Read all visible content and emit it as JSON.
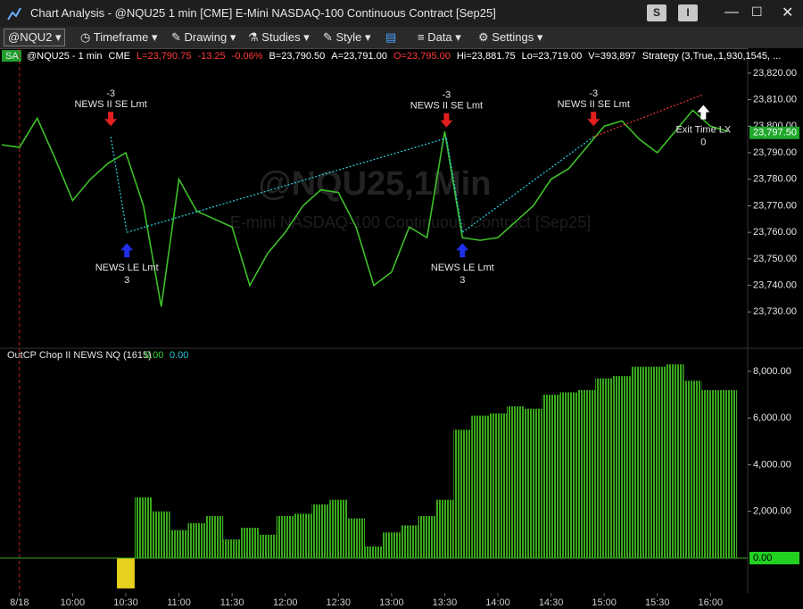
{
  "window": {
    "title": "Chart Analysis - @NQU25 1 min [CME] E-Mini NASDAQ-100 Continuous Contract [Sep25]",
    "buttons": [
      "S",
      "I"
    ]
  },
  "toolbar": {
    "symbol": "@NQU2",
    "items": [
      "Timeframe",
      "Drawing",
      "Studies",
      "Style",
      "Data",
      "Settings"
    ]
  },
  "price_pane": {
    "badge": "SA",
    "header": [
      {
        "text": "@NQU25 - 1 min",
        "color": "#ffffff"
      },
      {
        "text": "CME",
        "color": "#ffffff"
      },
      {
        "text": "L=23,790.75",
        "color": "#ff3b3b"
      },
      {
        "text": "-13.25",
        "color": "#ff3b3b"
      },
      {
        "text": "-0.06%",
        "color": "#ff3b3b"
      },
      {
        "text": "B=23,790.50",
        "color": "#ffffff"
      },
      {
        "text": "A=23,791.00",
        "color": "#ffffff"
      },
      {
        "text": "O=23,795.00",
        "color": "#ff3b3b"
      },
      {
        "text": "Hi=23,881.75",
        "color": "#ffffff"
      },
      {
        "text": "Lo=23,719.00",
        "color": "#ffffff"
      },
      {
        "text": "V=393,897",
        "color": "#ffffff"
      },
      {
        "text": "Strategy (3,True,.1,930,1545, ...",
        "color": "#ffffff"
      }
    ],
    "watermark": [
      "@NQU25,1Min",
      "E-mini NASDAQ-100 Continuous Contract [Sep25]"
    ],
    "type": "line",
    "color": "#3fbf2a",
    "x": [
      560,
      570,
      580,
      590,
      600,
      610,
      620,
      630,
      640,
      650,
      660,
      670,
      680,
      690,
      700,
      710,
      720,
      730,
      740,
      750,
      760,
      770,
      780,
      790,
      800,
      810,
      820,
      830,
      840,
      850,
      860,
      870,
      880,
      890,
      900,
      910,
      920,
      930,
      940,
      950,
      960,
      970
    ],
    "values": [
      23793,
      23792,
      23803,
      23788,
      23772,
      23780,
      23786,
      23790,
      23770,
      23732,
      23780,
      23768,
      23765,
      23762,
      23740,
      23752,
      23760,
      23770,
      23776,
      23775,
      23762,
      23740,
      23745,
      23762,
      23758,
      23798,
      23758,
      23757,
      23758,
      23764,
      23770,
      23780,
      23784,
      23792,
      23800,
      23802,
      23795,
      23790,
      23798,
      23806,
      23800,
      23798
    ],
    "ylim": [
      23718,
      23824
    ],
    "yticks": [
      {
        "value": 23730,
        "label": "23,730.00"
      },
      {
        "value": 23740,
        "label": "23,740.00"
      },
      {
        "value": 23750,
        "label": "23,750.00"
      },
      {
        "value": 23760,
        "label": "23,760.00"
      },
      {
        "value": 23770,
        "label": "23,770.00"
      },
      {
        "value": 23780,
        "label": "23,780.00"
      },
      {
        "value": 23790,
        "label": "23,790.00"
      },
      {
        "value": 23800,
        "label": "23,800.00"
      },
      {
        "value": 23810,
        "label": "23,810.00"
      },
      {
        "value": 23820,
        "label": "23,820.00"
      }
    ],
    "last_price": {
      "value": 23797.5,
      "label": "23,797.50"
    },
    "signals": [
      {
        "time": 621.5,
        "price": 23796,
        "side": "sell",
        "qty": -3,
        "name": "NEWS II SE Lmt",
        "line_to_next": "#29c6d6"
      },
      {
        "time": 630.6,
        "price": 23760,
        "side": "buy",
        "qty": 3,
        "name": "NEWS LE Lmt",
        "line_to_next": "#29c6d6"
      },
      {
        "time": 811,
        "price": 23795.5,
        "side": "sell",
        "qty": -3,
        "name": "NEWS II SE Lmt",
        "line_to_next": "#29c6d6"
      },
      {
        "time": 820,
        "price": 23760,
        "side": "buy",
        "qty": 3,
        "name": "NEWS LE Lmt",
        "line_to_next": "#29c6d6"
      },
      {
        "time": 894,
        "price": 23796,
        "side": "sell",
        "qty": -3,
        "name": "NEWS II SE Lmt",
        "line_to_next": "#e03030"
      },
      {
        "time": 956,
        "price": 23812,
        "side": "exit",
        "qty": 0,
        "name": "Exit Time LX"
      }
    ]
  },
  "indicator_pane": {
    "title": "OutCP Chop II NEWS NQ (1615)",
    "readouts": [
      "0.00",
      "0.00"
    ],
    "type": "bar",
    "color": "#3aa81c",
    "negative_color": "#e6d21e",
    "x": [
      560,
      570,
      580,
      590,
      600,
      610,
      620,
      630,
      640,
      650,
      660,
      670,
      680,
      690,
      700,
      710,
      720,
      730,
      740,
      750,
      760,
      770,
      780,
      790,
      800,
      810,
      820,
      830,
      840,
      850,
      860,
      870,
      880,
      890,
      900,
      910,
      920,
      930,
      940,
      950,
      960,
      970
    ],
    "values": [
      0,
      0,
      0,
      0,
      0,
      0,
      0,
      -1300,
      2600,
      2000,
      1200,
      1500,
      1800,
      800,
      1300,
      1000,
      1800,
      1900,
      2300,
      2500,
      1700,
      500,
      1100,
      1400,
      1800,
      2500,
      5500,
      6100,
      6200,
      6500,
      6400,
      7000,
      7100,
      7200,
      7700,
      7800,
      8200,
      8200,
      8300,
      7600,
      7200,
      7200
    ],
    "ylim": [
      -1340,
      8800
    ],
    "yticks": [
      {
        "value": 2000,
        "label": "2,000.00"
      },
      {
        "value": 4000,
        "label": "4,000.00"
      },
      {
        "value": 6000,
        "label": "6,000.00"
      },
      {
        "value": 8000,
        "label": "8,000.00"
      }
    ],
    "last_value": {
      "value": 0,
      "label": "0.00"
    }
  },
  "x_axis": {
    "xlim": [
      559,
      981
    ],
    "xticks": [
      {
        "value": 570,
        "label": "8/18"
      },
      {
        "value": 600,
        "label": "10:00"
      },
      {
        "value": 630,
        "label": "10:30"
      },
      {
        "value": 660,
        "label": "11:00"
      },
      {
        "value": 690,
        "label": "11:30"
      },
      {
        "value": 720,
        "label": "12:00"
      },
      {
        "value": 750,
        "label": "12:30"
      },
      {
        "value": 780,
        "label": "13:00"
      },
      {
        "value": 810,
        "label": "13:30"
      },
      {
        "value": 840,
        "label": "14:00"
      },
      {
        "value": 870,
        "label": "14:30"
      },
      {
        "value": 900,
        "label": "15:00"
      },
      {
        "value": 930,
        "label": "15:30"
      },
      {
        "value": 960,
        "label": "16:00"
      }
    ]
  }
}
